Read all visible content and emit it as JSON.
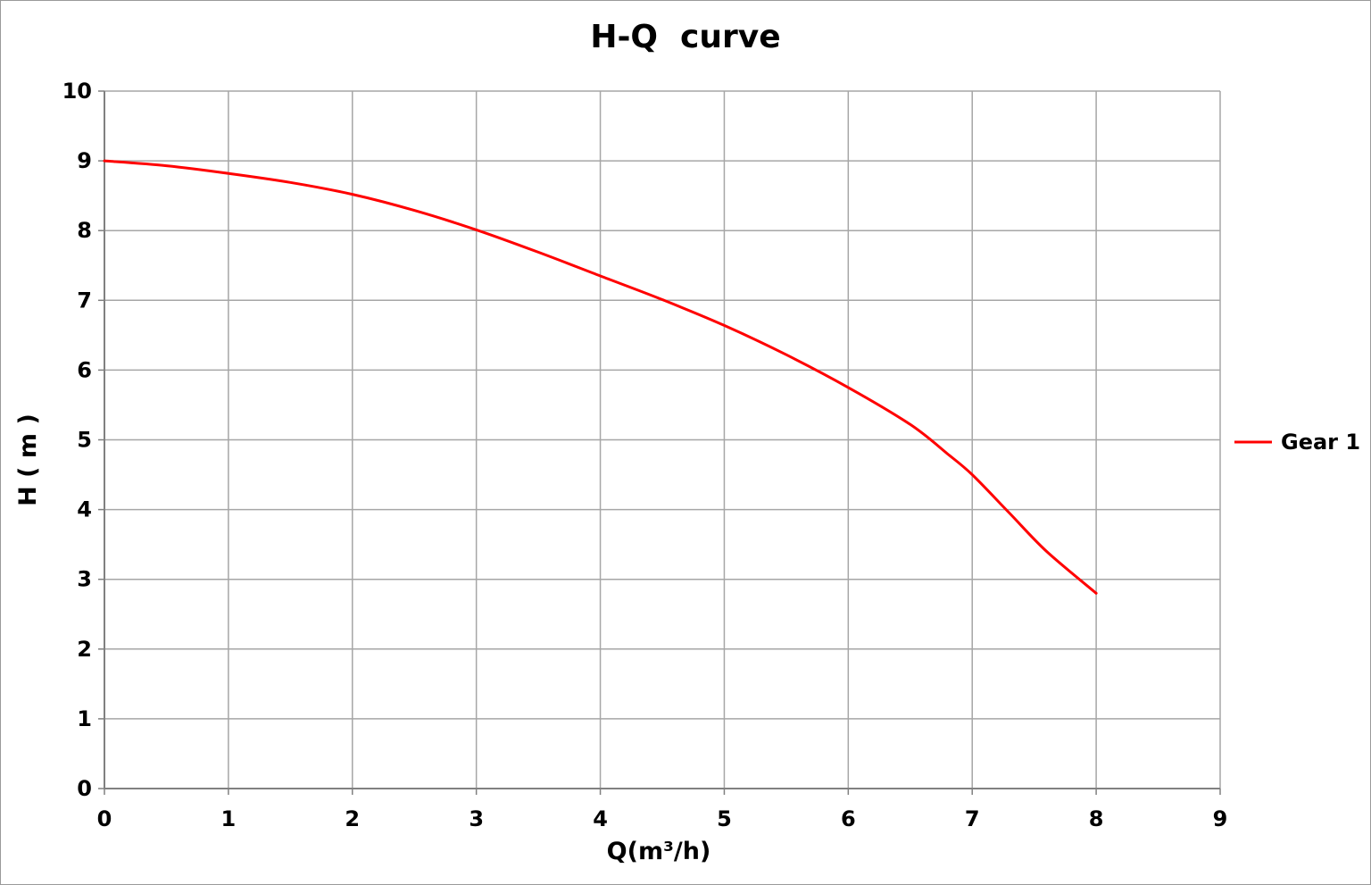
{
  "chart_data": {
    "type": "line",
    "title": "H-Q  curve",
    "xlabel": "Q(m³/h)",
    "ylabel": "H ( m )",
    "xlim": [
      0,
      9
    ],
    "ylim": [
      0,
      10
    ],
    "xticks": [
      "0",
      "1",
      "2",
      "3",
      "4",
      "5",
      "6",
      "7",
      "8",
      "9"
    ],
    "yticks": [
      "0",
      "1",
      "2",
      "3",
      "4",
      "5",
      "6",
      "7",
      "8",
      "9",
      "10"
    ],
    "grid": true,
    "legend_position": "right",
    "series": [
      {
        "name": "Gear 1",
        "color": "#ff0000",
        "x": [
          0,
          0.5,
          1,
          1.5,
          2,
          2.5,
          3,
          3.5,
          4,
          4.5,
          5,
          5.5,
          6,
          6.5,
          6.8,
          7,
          7.3,
          7.6,
          8
        ],
        "y": [
          9.0,
          8.93,
          8.82,
          8.69,
          8.52,
          8.29,
          8.01,
          7.69,
          7.35,
          7.01,
          6.64,
          6.22,
          5.75,
          5.22,
          4.8,
          4.5,
          3.95,
          3.4,
          2.8
        ]
      }
    ]
  }
}
